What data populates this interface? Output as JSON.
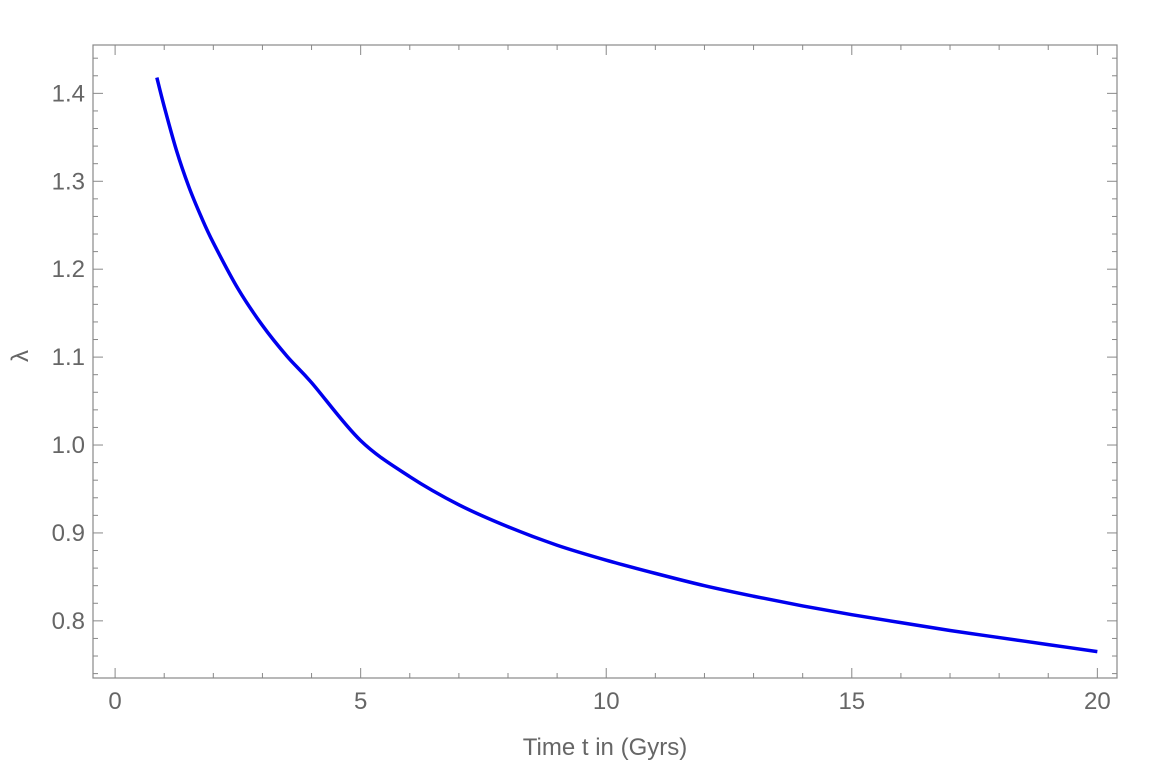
{
  "chart_data": {
    "type": "line",
    "title": "",
    "xlabel": "Time t in (Gyrs)",
    "ylabel": "λ",
    "xlim": [
      -0.45,
      20.4
    ],
    "ylim": [
      0.735,
      1.455
    ],
    "xticks": [
      0,
      5,
      10,
      15,
      20
    ],
    "xtick_labels": [
      "0",
      "5",
      "10",
      "15",
      "20"
    ],
    "yticks": [
      0.8,
      0.9,
      1.0,
      1.1,
      1.2,
      1.3,
      1.4
    ],
    "ytick_labels": [
      "0.8",
      "0.9",
      "1.0",
      "1.1",
      "1.2",
      "1.3",
      "1.4"
    ],
    "grid": false,
    "series": [
      {
        "color": "#0000ee",
        "x": [
          0.85,
          1.0,
          1.25,
          1.5,
          1.75,
          2.0,
          2.5,
          3.0,
          3.5,
          4.0,
          5.0,
          6.0,
          7.0,
          8.0,
          9.0,
          10.0,
          11.0,
          12.0,
          13.0,
          14.0,
          15.0,
          16.0,
          17.0,
          18.0,
          19.0,
          20.0
        ],
        "y": [
          1.418,
          1.385,
          1.335,
          1.294,
          1.26,
          1.23,
          1.178,
          1.136,
          1.101,
          1.071,
          1.005,
          0.964,
          0.932,
          0.907,
          0.886,
          0.869,
          0.854,
          0.84,
          0.828,
          0.817,
          0.807,
          0.798,
          0.789,
          0.781,
          0.773,
          0.765
        ]
      }
    ]
  }
}
